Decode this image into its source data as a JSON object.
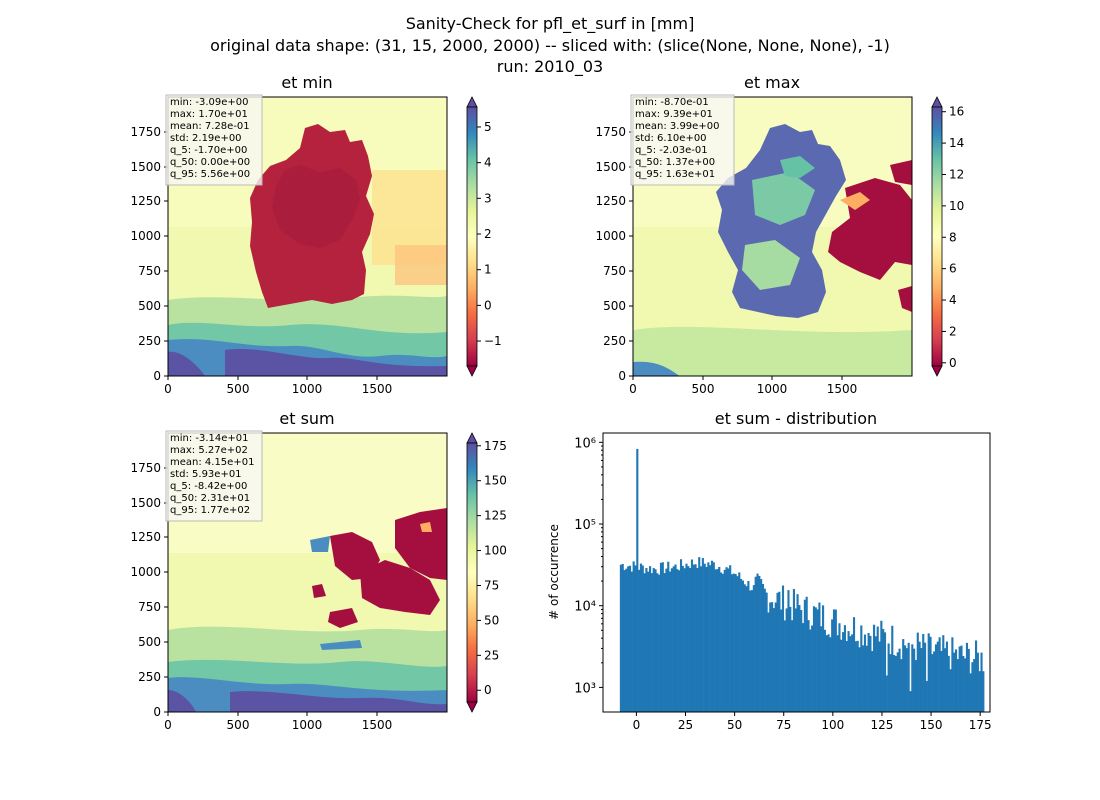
{
  "figure": {
    "suptitle": [
      "Sanity-Check for pfl_et_surf in [mm]",
      "original data shape: (31, 15, 2000, 2000) -- sliced with: (slice(None, None, None), -1)",
      "run: 2010_03"
    ]
  },
  "chart_data": [
    {
      "type": "heatmap",
      "title": "et min",
      "colormap": "Spectral",
      "xlim": [
        0,
        2000
      ],
      "ylim": [
        0,
        2000
      ],
      "xticks": [
        "0",
        "500",
        "1000",
        "1500"
      ],
      "yticks": [
        "0",
        "250",
        "500",
        "750",
        "1000",
        "1250",
        "1500",
        "1750"
      ],
      "colorbar": {
        "range": [
          -1.7,
          5.56
        ],
        "ticks": [
          "−1",
          "0",
          "1",
          "2",
          "3",
          "4",
          "5"
        ],
        "tick_values": [
          -1,
          0,
          1,
          2,
          3,
          4,
          5
        ],
        "extend": "both"
      },
      "stats": [
        "min: -3.09e+00",
        "max: 1.70e+01",
        "mean: 7.28e-01",
        "std: 2.19e+00",
        "q_5: -1.70e+00",
        "q_50: 0.00e+00",
        "q_95: 5.56e+00"
      ]
    },
    {
      "type": "heatmap",
      "title": "et max",
      "colormap": "Spectral",
      "xlim": [
        0,
        2000
      ],
      "ylim": [
        0,
        2000
      ],
      "xticks": [
        "0",
        "500",
        "1000",
        "1500"
      ],
      "yticks": [
        "0",
        "250",
        "500",
        "750",
        "1000",
        "1250",
        "1500",
        "1750"
      ],
      "colorbar": {
        "range": [
          -0.203,
          16.3
        ],
        "ticks": [
          "0",
          "2",
          "4",
          "6",
          "8",
          "10",
          "12",
          "14",
          "16"
        ],
        "tick_values": [
          0,
          2,
          4,
          6,
          8,
          10,
          12,
          14,
          16
        ],
        "extend": "both"
      },
      "stats": [
        "min: -8.70e-01",
        "max: 9.39e+01",
        "mean: 3.99e+00",
        "std: 6.10e+00",
        "q_5: -2.03e-01",
        "q_50: 1.37e+00",
        "q_95: 1.63e+01"
      ]
    },
    {
      "type": "heatmap",
      "title": "et sum",
      "colormap": "Spectral",
      "xlim": [
        0,
        2000
      ],
      "ylim": [
        0,
        2000
      ],
      "xticks": [
        "0",
        "500",
        "1000",
        "1500"
      ],
      "yticks": [
        "0",
        "250",
        "500",
        "750",
        "1000",
        "1250",
        "1500",
        "1750"
      ],
      "colorbar": {
        "range": [
          -8.42,
          177
        ],
        "ticks": [
          "0",
          "25",
          "50",
          "75",
          "100",
          "125",
          "150",
          "175"
        ],
        "tick_values": [
          0,
          25,
          50,
          75,
          100,
          125,
          150,
          175
        ],
        "extend": "both"
      },
      "stats": [
        "min: -3.14e+01",
        "max: 5.27e+02",
        "mean: 4.15e+01",
        "std: 5.93e+01",
        "q_5: -8.42e+00",
        "q_50: 2.31e+01",
        "q_95: 1.77e+02"
      ]
    },
    {
      "type": "bar",
      "subtype": "histogram",
      "title": "et sum - distribution",
      "xlabel": "",
      "ylabel": "# of occurrence",
      "yscale": "log",
      "xlim": [
        -17,
        180
      ],
      "ylim": [
        500,
        1300000
      ],
      "xticks": [
        "0",
        "25",
        "50",
        "75",
        "100",
        "125",
        "150",
        "175"
      ],
      "xtick_values": [
        0,
        25,
        50,
        75,
        100,
        125,
        150,
        175
      ],
      "yticks": [
        "10³",
        "10⁴",
        "10⁵",
        "10⁶"
      ],
      "ytick_values": [
        1000,
        10000,
        100000,
        1000000
      ],
      "bar_color": "#1f77b4",
      "bin_range": [
        -8.42,
        177
      ],
      "bin_count": 200,
      "trend": {
        "x": [
          -8.4,
          0,
          10,
          20,
          30,
          40,
          50,
          60,
          75,
          100,
          125,
          150,
          177
        ],
        "y": [
          32000,
          30000,
          28000,
          30000,
          34000,
          32000,
          25000,
          16000,
          11000,
          6500,
          4200,
          2800,
          2200
        ]
      },
      "spikes": [
        {
          "x": 0,
          "y": 830000
        },
        {
          "x": 139,
          "y": 900
        },
        {
          "x": 127,
          "y": 1400
        },
        {
          "x": 148,
          "y": 1200
        },
        {
          "x": 80,
          "y": 16000
        },
        {
          "x": 77,
          "y": 15500
        }
      ]
    }
  ]
}
